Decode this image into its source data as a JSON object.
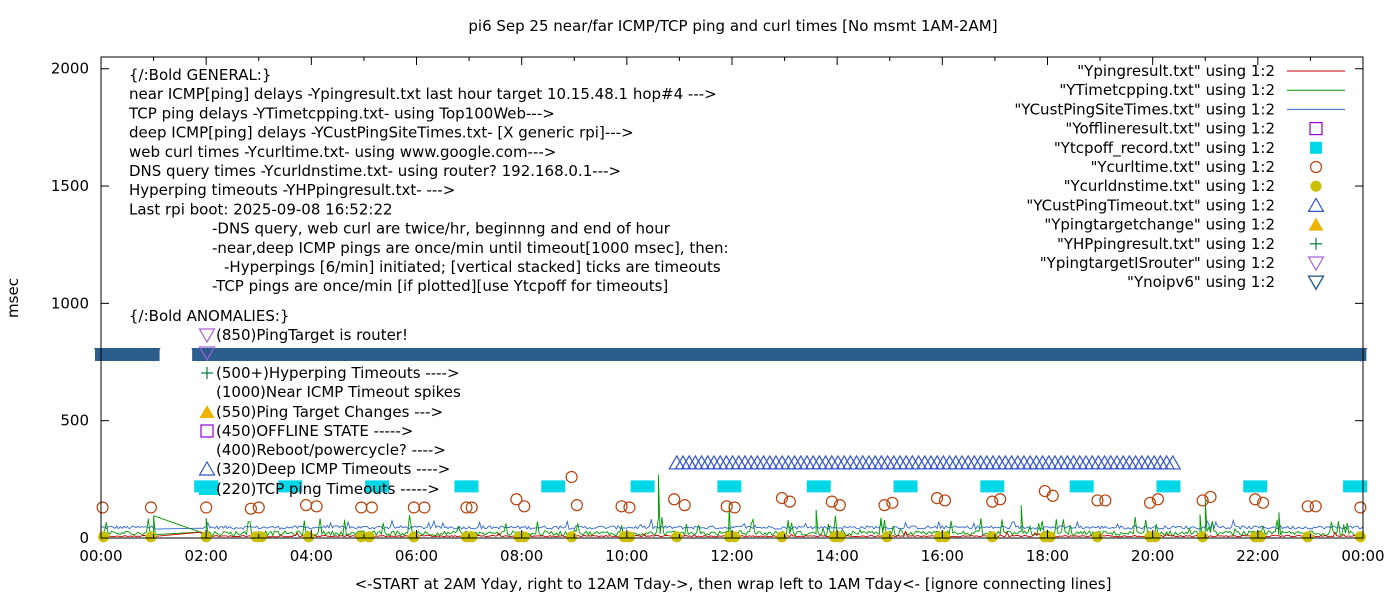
{
  "chart_data": {
    "type": "scatter",
    "title": "pi6 Sep 25  near/far ICMP/TCP ping and curl times [No msmt 1AM-2AM]",
    "xlabel": "<-START at 2AM Yday, right to 12AM Tday->, then wrap left to 1AM Tday<- [ignore connecting lines]",
    "ylabel": "msec",
    "xlim": [
      0,
      24
    ],
    "ylim": [
      0,
      2050
    ],
    "x_tick_labels": [
      "00:00",
      "02:00",
      "04:00",
      "06:00",
      "08:00",
      "10:00",
      "12:00",
      "14:00",
      "16:00",
      "18:00",
      "20:00",
      "22:00",
      "00:00"
    ],
    "y_ticks": [
      0,
      500,
      1000,
      1500,
      2000
    ],
    "y_tick_labels": [
      "0",
      "500",
      "1000",
      "1500",
      "2000"
    ],
    "legend_position": "top-right",
    "legend": [
      {
        "label": "\"Ypingresult.txt\" using 1:2",
        "marker": "line",
        "color": "#cc0000"
      },
      {
        "label": "\"YTimetcpping.txt\" using 1:2",
        "marker": "line",
        "color": "#009900"
      },
      {
        "label": "\"YCustPingSiteTimes.txt\" using 1:2",
        "marker": "line",
        "color": "#3366cc"
      },
      {
        "label": "\"Yofflineresult.txt\" using 1:2",
        "marker": "open-square",
        "color": "#9400d3"
      },
      {
        "label": "\"Ytcpoff_record.txt\" using 1:2",
        "marker": "filled-square",
        "color": "#00d8e8"
      },
      {
        "label": "\"Ycurltime.txt\" using 1:2",
        "marker": "open-circle",
        "color": "#b8400a"
      },
      {
        "label": "\"Ycurldnstime.txt\" using 1:2",
        "marker": "filled-circle",
        "color": "#c8c000"
      },
      {
        "label": "\"YCustPingTimeout.txt\" using 1:2",
        "marker": "open-triangle",
        "color": "#3355cc"
      },
      {
        "label": "\"Ypingtargetchange\" using 1:2",
        "marker": "filled-triangle",
        "color": "#f0b400"
      },
      {
        "label": "\"YHPpingresult.txt\" using 1:2",
        "marker": "plus",
        "color": "#007a3d"
      },
      {
        "label": "\"YpingtargetISrouter\" using 1:2",
        "marker": "open-down-triangle",
        "color": "#a65fd8"
      },
      {
        "label": "\"Ynoipv6\" using 1:2",
        "marker": "down-triangle",
        "color": "#2b5e8c"
      }
    ],
    "annotations": [
      "{/:Bold GENERAL:}",
      "near ICMP[ping] delays -Ypingresult.txt last hour target 10.15.48.1 hop#4 --->",
      "TCP ping delays -YTimetcpping.txt- using Top100Web--->",
      "deep ICMP[ping] delays -YCustPingSiteTimes.txt- [X generic rpi]--->",
      "web curl times -Ycurltime.txt- using www.google.com--->",
      "DNS query times -Ycurldnstime.txt- using router? 192.168.0.1--->",
      "Hyperping timeouts -YHPpingresult.txt- --->",
      "Last rpi boot: 2025-09-08 16:52:22",
      "-DNS query, web curl are twice/hr, beginnng and end of hour",
      "-near,deep ICMP pings are once/min until timeout[1000 msec], then:",
      "-Hyperpings [6/min] initiated; [vertical stacked] ticks are timeouts",
      "-TCP pings are once/min [if plotted][use Ytcpoff for timeouts]",
      "{/:Bold ANOMALIES:}",
      "(850)PingTarget is router!",
      "(500+)Hyperping Timeouts ---->",
      "(1000)Near ICMP Timeout spikes",
      "(550)Ping Target Changes --->",
      "(450)OFFLINE STATE ----->",
      "(400)Reboot/powercycle? ---->",
      "(320)Deep ICMP Timeouts ---->",
      "(220)TCP ping Timeouts ----->"
    ],
    "series": [
      {
        "name": "Ynoipv6",
        "marker": "down-triangle",
        "y": 780,
        "x_ranges": [
          [
            0,
            1.0
          ],
          [
            1.85,
            23.95
          ]
        ]
      },
      {
        "name": "YCustPingTimeout",
        "marker": "open-triangle",
        "y": 320,
        "x_ranges": [
          [
            10.95,
            20.45
          ]
        ]
      },
      {
        "name": "Ytcpoff_record",
        "marker": "filled-square",
        "y": 220,
        "x": [
          2.0,
          3.6,
          5.25,
          6.95,
          8.6,
          10.3,
          11.95,
          13.65,
          15.3,
          16.95,
          18.65,
          20.3,
          21.95,
          23.85
        ]
      },
      {
        "name": "Ycurltime",
        "marker": "open-circle",
        "points": [
          [
            0.03,
            130
          ],
          [
            0.95,
            130
          ],
          [
            2.0,
            130
          ],
          [
            2.85,
            125
          ],
          [
            3.0,
            130
          ],
          [
            3.9,
            140
          ],
          [
            4.1,
            135
          ],
          [
            4.95,
            130
          ],
          [
            5.15,
            130
          ],
          [
            5.95,
            130
          ],
          [
            6.15,
            130
          ],
          [
            6.95,
            130
          ],
          [
            7.05,
            130
          ],
          [
            7.9,
            165
          ],
          [
            8.05,
            135
          ],
          [
            8.95,
            260
          ],
          [
            9.05,
            140
          ],
          [
            9.9,
            135
          ],
          [
            10.05,
            130
          ],
          [
            10.9,
            165
          ],
          [
            11.1,
            140
          ],
          [
            11.9,
            135
          ],
          [
            12.05,
            130
          ],
          [
            12.95,
            170
          ],
          [
            13.1,
            155
          ],
          [
            13.9,
            155
          ],
          [
            14.05,
            140
          ],
          [
            14.9,
            140
          ],
          [
            15.05,
            150
          ],
          [
            15.9,
            170
          ],
          [
            16.05,
            160
          ],
          [
            16.95,
            155
          ],
          [
            17.1,
            165
          ],
          [
            17.95,
            200
          ],
          [
            18.1,
            180
          ],
          [
            18.95,
            160
          ],
          [
            19.1,
            160
          ],
          [
            19.95,
            150
          ],
          [
            20.1,
            165
          ],
          [
            20.95,
            160
          ],
          [
            21.1,
            175
          ],
          [
            21.95,
            165
          ],
          [
            22.1,
            150
          ],
          [
            22.95,
            135
          ],
          [
            23.1,
            135
          ],
          [
            23.95,
            130
          ]
        ]
      },
      {
        "name": "Ycurldnstime",
        "marker": "filled-circle",
        "y": 5,
        "x": [
          0.05,
          0.95,
          2.0,
          2.95,
          3.05,
          3.95,
          4.95,
          5.1,
          5.95,
          6.95,
          7.05,
          7.95,
          8.05,
          8.95,
          9.95,
          10.05,
          10.95,
          11.95,
          12.05,
          12.95,
          13.95,
          14.05,
          14.95,
          15.95,
          16.05,
          16.95,
          17.95,
          18.05,
          18.95,
          19.95,
          20.05,
          20.95,
          21.95,
          22.05,
          22.95,
          23.95
        ]
      },
      {
        "name": "YTimetcpping",
        "marker": "line",
        "color": "#009900",
        "baseline": 20,
        "spike_x": [
          1.0,
          2.0,
          10.6,
          11.95,
          13.6,
          17.5,
          20.9,
          21.0,
          22.4
        ],
        "spike_y": [
          95,
          85,
          270,
          150,
          120,
          140,
          100,
          160,
          110
        ]
      },
      {
        "name": "YCustPingSiteTimes",
        "marker": "line",
        "color": "#3366cc",
        "baseline": 45
      },
      {
        "name": "Ypingresult",
        "marker": "line",
        "color": "#cc0000",
        "baseline": 8
      }
    ]
  }
}
